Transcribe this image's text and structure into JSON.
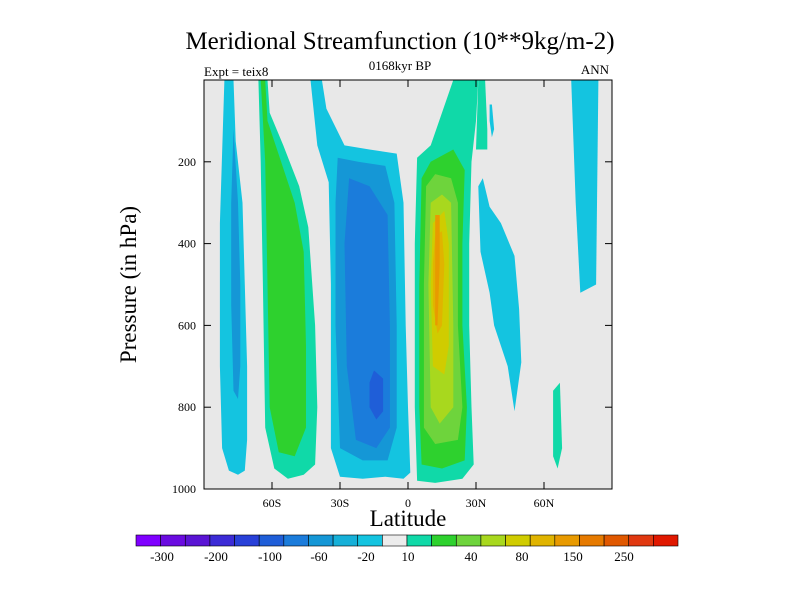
{
  "chart_data": {
    "type": "heatmap",
    "plot": "filled-contour",
    "title": "Meridional Streamfunction (10**9kg/m-2)",
    "subtitle_left": "Expt = teix8",
    "subtitle_center": "0168kyr BP",
    "subtitle_right": "ANN",
    "xlabel": "Latitude",
    "ylabel": "Pressure (in hPa)",
    "xlim": [
      -90,
      90
    ],
    "ylim": [
      1000,
      0
    ],
    "x_ticks": [
      {
        "value": -60,
        "label": "60S"
      },
      {
        "value": -30,
        "label": "30S"
      },
      {
        "value": 0,
        "label": "0"
      },
      {
        "value": 30,
        "label": "30N"
      },
      {
        "value": 60,
        "label": "60N"
      }
    ],
    "y_ticks": [
      {
        "value": 200,
        "label": "200"
      },
      {
        "value": 400,
        "label": "400"
      },
      {
        "value": 600,
        "label": "600"
      },
      {
        "value": 800,
        "label": "800"
      },
      {
        "value": 1000,
        "label": "1000"
      }
    ],
    "background_color": "#e8e8e8",
    "colorbar": {
      "colors": [
        "#7f00ff",
        "#6a0be0",
        "#5a14d4",
        "#3c2bd6",
        "#2840d8",
        "#1f5ed8",
        "#1b7cdb",
        "#1597d6",
        "#16b0d8",
        "#14c4e0",
        "#ececec",
        "#10d9a8",
        "#2ed12e",
        "#6ed43c",
        "#a8d81e",
        "#d0cc00",
        "#e0b400",
        "#e89a00",
        "#e67a00",
        "#e05800",
        "#e03810",
        "#e01800"
      ],
      "labels": [
        "-300",
        "-200",
        "-100",
        "-60",
        "-20",
        "10",
        "40",
        "80",
        "150",
        "250"
      ]
    },
    "regions": [
      {
        "name": "sh-polar-cell",
        "level": -20,
        "color": "#14c4e0",
        "outline": [
          [
            -81,
            0
          ],
          [
            -77,
            0
          ],
          [
            -76,
            150
          ],
          [
            -73,
            300
          ],
          [
            -72,
            500
          ],
          [
            -71,
            700
          ],
          [
            -71,
            880
          ],
          [
            -72,
            955
          ],
          [
            -75,
            965
          ],
          [
            -79,
            955
          ],
          [
            -82,
            900
          ],
          [
            -83,
            700
          ],
          [
            -83,
            350
          ]
        ]
      },
      {
        "name": "sh-polar-core",
        "level": -60,
        "color": "#1597d6",
        "outline": [
          [
            -77,
            120
          ],
          [
            -75,
            300
          ],
          [
            -74,
            500
          ],
          [
            -74,
            700
          ],
          [
            -75,
            780
          ],
          [
            -77,
            760
          ],
          [
            -78,
            550
          ],
          [
            -78,
            300
          ]
        ]
      },
      {
        "name": "sh-ferrel-cell",
        "level": 10,
        "color": "#10d9a8",
        "outline": [
          [
            -66,
            0
          ],
          [
            -62,
            0
          ],
          [
            -61,
            80
          ],
          [
            -55,
            160
          ],
          [
            -48,
            260
          ],
          [
            -44,
            360
          ],
          [
            -41,
            600
          ],
          [
            -40,
            800
          ],
          [
            -41,
            940
          ],
          [
            -46,
            965
          ],
          [
            -53,
            975
          ],
          [
            -59,
            950
          ],
          [
            -63,
            850
          ],
          [
            -64,
            500
          ],
          [
            -65,
            200
          ]
        ]
      },
      {
        "name": "sh-ferrel-core",
        "level": 40,
        "color": "#2ed12e",
        "outline": [
          [
            -65,
            0
          ],
          [
            -63,
            0
          ],
          [
            -62,
            100
          ],
          [
            -56,
            200
          ],
          [
            -50,
            300
          ],
          [
            -46,
            420
          ],
          [
            -45,
            650
          ],
          [
            -45,
            850
          ],
          [
            -50,
            920
          ],
          [
            -57,
            910
          ],
          [
            -61,
            800
          ],
          [
            -62,
            500
          ],
          [
            -63,
            200
          ]
        ]
      },
      {
        "name": "sh-hadley-cell",
        "level": -20,
        "color": "#14c4e0",
        "outline": [
          [
            -43,
            0
          ],
          [
            -38,
            0
          ],
          [
            -36,
            70
          ],
          [
            -28,
            160
          ],
          [
            -17,
            170
          ],
          [
            -5,
            180
          ],
          [
            -2,
            300
          ],
          [
            -1,
            600
          ],
          [
            0,
            800
          ],
          [
            1,
            960
          ],
          [
            -2,
            975
          ],
          [
            -10,
            970
          ],
          [
            -20,
            975
          ],
          [
            -30,
            970
          ],
          [
            -34,
            900
          ],
          [
            -34,
            500
          ],
          [
            -35,
            250
          ],
          [
            -40,
            160
          ]
        ]
      },
      {
        "name": "sh-hadley-mid",
        "level": -60,
        "color": "#1597d6",
        "outline": [
          [
            -31,
            190
          ],
          [
            -22,
            200
          ],
          [
            -10,
            210
          ],
          [
            -6,
            300
          ],
          [
            -5,
            600
          ],
          [
            -5,
            850
          ],
          [
            -9,
            930
          ],
          [
            -20,
            930
          ],
          [
            -30,
            900
          ],
          [
            -32,
            600
          ],
          [
            -32,
            300
          ]
        ]
      },
      {
        "name": "sh-hadley-inner",
        "level": -100,
        "color": "#1b7cdb",
        "outline": [
          [
            -26,
            240
          ],
          [
            -17,
            260
          ],
          [
            -9,
            330
          ],
          [
            -8,
            600
          ],
          [
            -8,
            850
          ],
          [
            -14,
            900
          ],
          [
            -23,
            880
          ],
          [
            -27,
            700
          ],
          [
            -28,
            400
          ]
        ]
      },
      {
        "name": "sh-hadley-core",
        "level": -200,
        "color": "#1f5ed8",
        "outline": [
          [
            -15,
            710
          ],
          [
            -11,
            730
          ],
          [
            -11,
            810
          ],
          [
            -14,
            830
          ],
          [
            -17,
            800
          ],
          [
            -17,
            740
          ]
        ]
      },
      {
        "name": "nh-hadley-cell",
        "level": 10,
        "color": "#10d9a8",
        "outline": [
          [
            20,
            0
          ],
          [
            31,
            0
          ],
          [
            30,
            100
          ],
          [
            28,
            200
          ],
          [
            27,
            400
          ],
          [
            27,
            600
          ],
          [
            28,
            800
          ],
          [
            29,
            940
          ],
          [
            24,
            975
          ],
          [
            12,
            985
          ],
          [
            4,
            980
          ],
          [
            3,
            800
          ],
          [
            3,
            400
          ],
          [
            4,
            190
          ],
          [
            10,
            160
          ]
        ]
      },
      {
        "name": "nh-hadley-l40",
        "level": 40,
        "color": "#2ed12e",
        "outline": [
          [
            6,
            240
          ],
          [
            10,
            200
          ],
          [
            20,
            170
          ],
          [
            25,
            220
          ],
          [
            24,
            400
          ],
          [
            24,
            600
          ],
          [
            26,
            800
          ],
          [
            25,
            930
          ],
          [
            15,
            950
          ],
          [
            6,
            940
          ],
          [
            5,
            800
          ],
          [
            5,
            500
          ]
        ]
      },
      {
        "name": "nh-hadley-l80",
        "level": 80,
        "color": "#6ed43c",
        "outline": [
          [
            8,
            260
          ],
          [
            12,
            230
          ],
          [
            19,
            240
          ],
          [
            22,
            300
          ],
          [
            22,
            600
          ],
          [
            24,
            800
          ],
          [
            22,
            880
          ],
          [
            12,
            890
          ],
          [
            7,
            850
          ],
          [
            7,
            500
          ]
        ]
      },
      {
        "name": "nh-hadley-l150",
        "level": 150,
        "color": "#a8d81e",
        "outline": [
          [
            10,
            300
          ],
          [
            15,
            280
          ],
          [
            19,
            300
          ],
          [
            20,
            600
          ],
          [
            20,
            800
          ],
          [
            14,
            840
          ],
          [
            10,
            800
          ],
          [
            9,
            500
          ]
        ]
      },
      {
        "name": "nh-hadley-l200",
        "level": 200,
        "color": "#d0cc00",
        "outline": [
          [
            11,
            350
          ],
          [
            16,
            320
          ],
          [
            18,
            400
          ],
          [
            18,
            650
          ],
          [
            16,
            720
          ],
          [
            11,
            700
          ],
          [
            10,
            500
          ]
        ]
      },
      {
        "name": "nh-hadley-l250",
        "level": 250,
        "color": "#e0b400",
        "outline": [
          [
            12,
            380
          ],
          [
            15,
            370
          ],
          [
            16,
            450
          ],
          [
            15,
            600
          ],
          [
            13,
            620
          ],
          [
            11,
            550
          ],
          [
            11,
            450
          ]
        ]
      },
      {
        "name": "nh-hadley-core",
        "level": 300,
        "color": "#e89a00",
        "outline": [
          [
            12,
            330
          ],
          [
            14,
            330
          ],
          [
            14,
            450
          ],
          [
            13,
            600
          ],
          [
            12,
            600
          ],
          [
            12,
            450
          ]
        ]
      },
      {
        "name": "nh-upper-green",
        "level": 10,
        "color": "#10d9a8",
        "outline": [
          [
            30,
            170
          ],
          [
            31,
            0
          ],
          [
            34,
            0
          ],
          [
            35,
            120
          ],
          [
            35,
            170
          ]
        ]
      },
      {
        "name": "nh-upper-blob",
        "level": -20,
        "color": "#14c4e0",
        "outline": [
          [
            36,
            60
          ],
          [
            37,
            60
          ],
          [
            38,
            120
          ],
          [
            37,
            140
          ],
          [
            36,
            100
          ]
        ]
      },
      {
        "name": "nh-ferrel-cell",
        "level": -20,
        "color": "#14c4e0",
        "outline": [
          [
            31,
            260
          ],
          [
            33,
            240
          ],
          [
            36,
            310
          ],
          [
            41,
            350
          ],
          [
            47,
            430
          ],
          [
            49,
            560
          ],
          [
            50,
            690
          ],
          [
            47,
            810
          ],
          [
            44,
            700
          ],
          [
            38,
            600
          ],
          [
            36,
            520
          ],
          [
            32,
            420
          ]
        ]
      },
      {
        "name": "nh-polar-upper",
        "level": -20,
        "color": "#14c4e0",
        "outline": [
          [
            72,
            0
          ],
          [
            84,
            0
          ],
          [
            83,
            500
          ],
          [
            76,
            520
          ],
          [
            74,
            300
          ]
        ]
      },
      {
        "name": "nh-polar-lower",
        "level": 10,
        "color": "#10d9a8",
        "outline": [
          [
            64,
            760
          ],
          [
            67,
            740
          ],
          [
            68,
            900
          ],
          [
            66,
            950
          ],
          [
            64,
            920
          ]
        ]
      }
    ]
  }
}
